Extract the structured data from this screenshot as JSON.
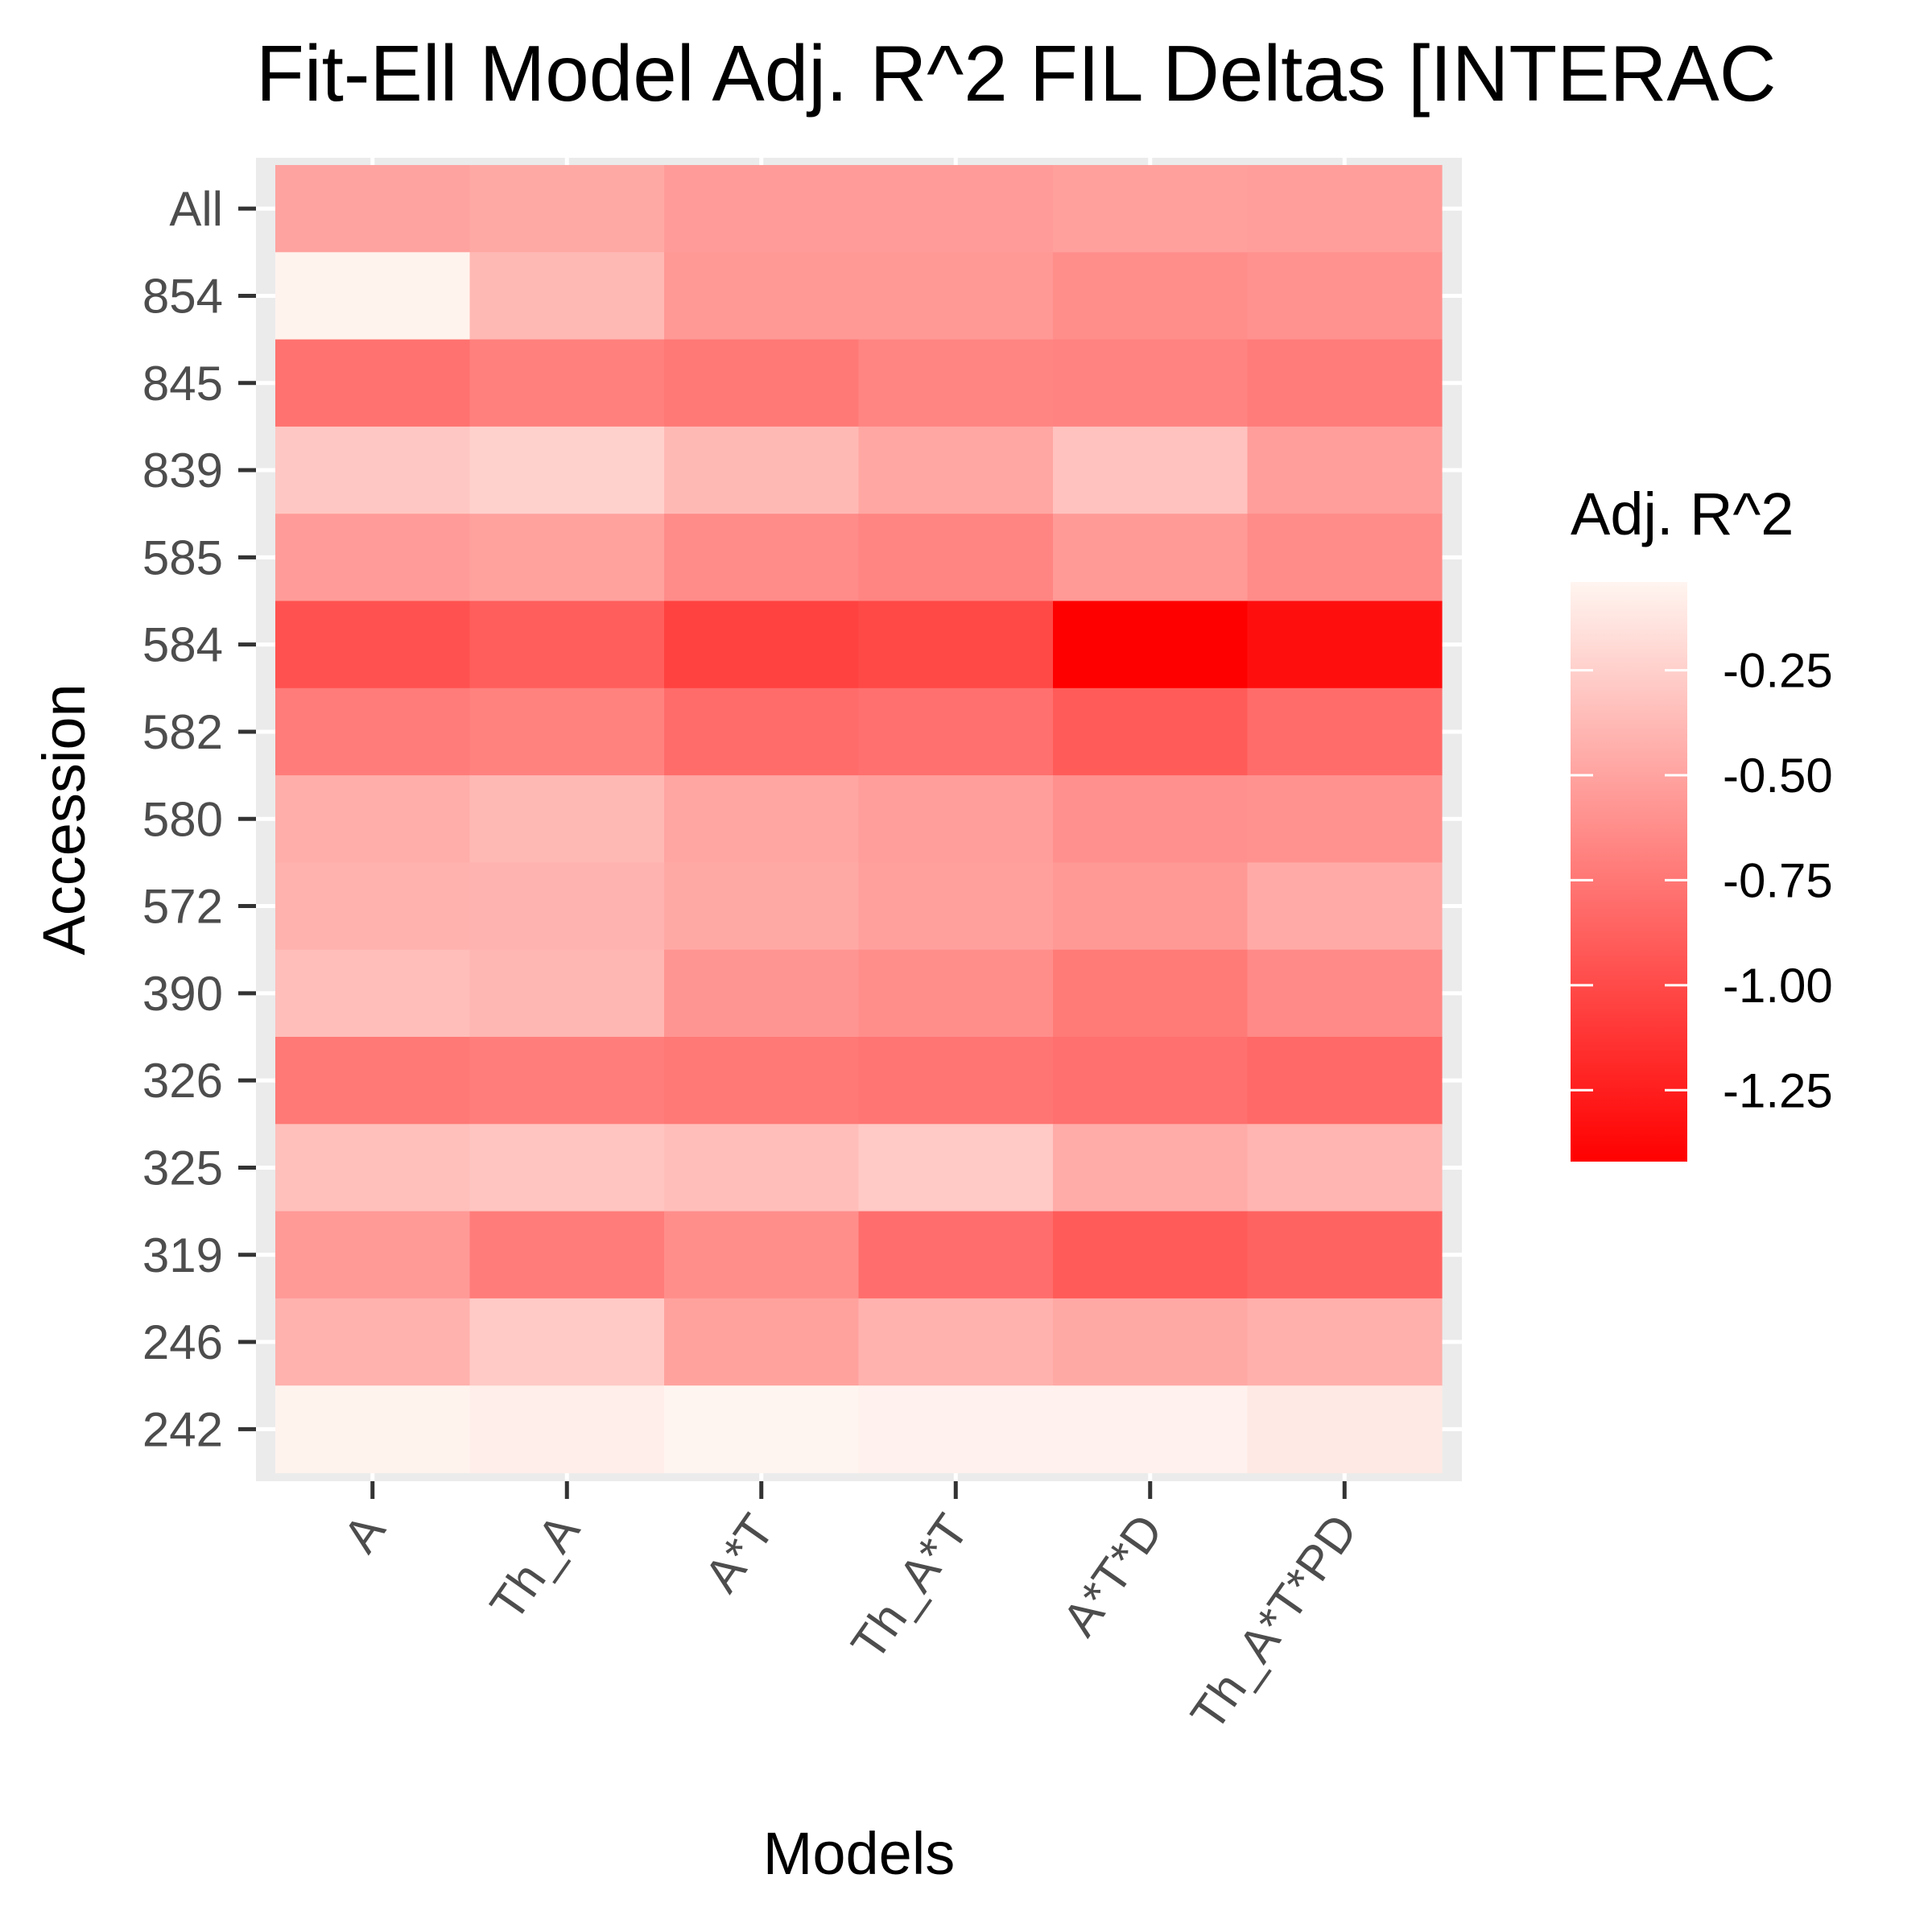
{
  "chart_data": {
    "type": "heatmap",
    "title": "Fit-Ell Model Adj. R^2 FIL Deltas [INTERAC",
    "xlabel": "Models",
    "ylabel": "Accession",
    "x_categories": [
      "A",
      "Th_A",
      "A*T",
      "Th_A*T",
      "A*T*D",
      "Th_A*T*PD"
    ],
    "y_categories": [
      "All",
      "854",
      "845",
      "839",
      "585",
      "584",
      "582",
      "580",
      "572",
      "390",
      "326",
      "325",
      "319",
      "246",
      "242"
    ],
    "values": [
      [
        -0.5,
        -0.47,
        -0.54,
        -0.54,
        -0.52,
        -0.53
      ],
      [
        -0.05,
        -0.38,
        -0.56,
        -0.56,
        -0.62,
        -0.6
      ],
      [
        -0.78,
        -0.7,
        -0.74,
        -0.67,
        -0.68,
        -0.72
      ],
      [
        -0.3,
        -0.24,
        -0.38,
        -0.48,
        -0.33,
        -0.53
      ],
      [
        -0.54,
        -0.51,
        -0.63,
        -0.67,
        -0.55,
        -0.63
      ],
      [
        -0.96,
        -0.89,
        -1.05,
        -1.01,
        -1.42,
        -1.34
      ],
      [
        -0.72,
        -0.69,
        -0.81,
        -0.79,
        -0.91,
        -0.81
      ],
      [
        -0.44,
        -0.38,
        -0.49,
        -0.53,
        -0.61,
        -0.6
      ],
      [
        -0.42,
        -0.41,
        -0.47,
        -0.52,
        -0.56,
        -0.46
      ],
      [
        -0.35,
        -0.39,
        -0.58,
        -0.62,
        -0.73,
        -0.64
      ],
      [
        -0.74,
        -0.71,
        -0.74,
        -0.76,
        -0.79,
        -0.83
      ],
      [
        -0.34,
        -0.31,
        -0.35,
        -0.29,
        -0.45,
        -0.4
      ],
      [
        -0.55,
        -0.72,
        -0.62,
        -0.8,
        -0.91,
        -0.86
      ],
      [
        -0.42,
        -0.28,
        -0.51,
        -0.42,
        -0.47,
        -0.43
      ],
      [
        -0.05,
        -0.08,
        -0.04,
        -0.06,
        -0.06,
        -0.11
      ]
    ],
    "color_scale": {
      "low_color": "#ff0000",
      "high_color": "#fff5f0",
      "domain": [
        -1.42,
        -0.04
      ]
    },
    "legend": {
      "title": "Adj. R^2",
      "placement": "right",
      "ticks": [
        -0.25,
        -0.5,
        -0.75,
        -1.0,
        -1.25
      ],
      "tick_labels": [
        "-0.25",
        "-0.50",
        "-0.75",
        "-1.00",
        "-1.25"
      ]
    },
    "grid": true
  }
}
